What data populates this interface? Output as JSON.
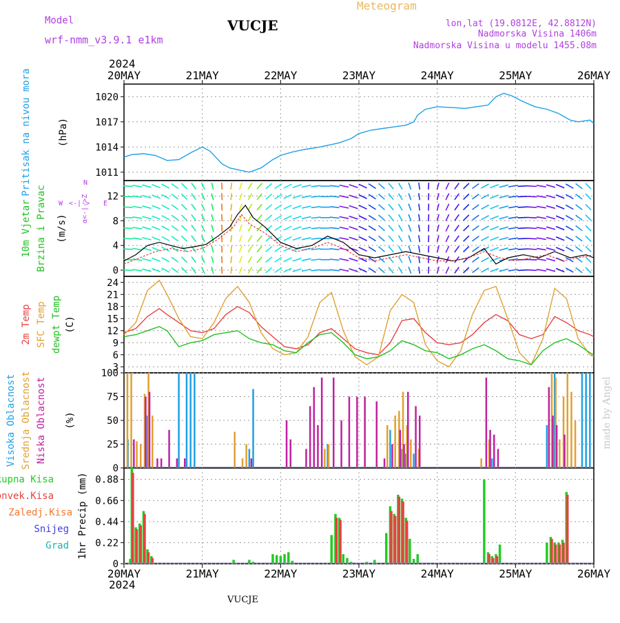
{
  "header": {
    "model_label": "Model",
    "model_value": "wrf-nmm_v3.9.1  e1km",
    "station": "VUCJE",
    "product": "Meteogram",
    "lonlat": "lon,lat (19.0812E, 42.8812N)",
    "altitude": "Nadmorska Visina 1406m",
    "model_altitude": "Nadmorska Visina u modelu 1455.08m"
  },
  "footer": {
    "station": "VUCJE",
    "credit": "made by Angel"
  },
  "colors": {
    "pressure": "#1ea0e6",
    "temp2m": "#e84040",
    "sfc": "#e0a030",
    "dewpt": "#22c022",
    "cloud_high": "#1ea0e6",
    "cloud_mid": "#e0a030",
    "cloud_low": "#c020a0",
    "precip_total": "#22cc22",
    "precip_conv": "#e84040",
    "precip_frozen": "#f07830",
    "snow": "#4040e0",
    "hail": "#20b0b0",
    "wind_title": "#22c022",
    "dir_legend": "#b040e0"
  },
  "chart_data": [
    {
      "type": "line",
      "title": "",
      "ylabel_lines": [
        "Pritisak na nivou mora",
        "(hPa)"
      ],
      "x_top_year": "2024",
      "x_ticks": [
        "20MAY",
        "21MAY",
        "22MAY",
        "23MAY",
        "24MAY",
        "25MAY",
        "26MAY"
      ],
      "x_days_from": "2024-05-20",
      "x_range": [
        0,
        6
      ],
      "y_ticks": [
        1011,
        1014,
        1017,
        1020
      ],
      "ylim": [
        1010,
        1021.5
      ],
      "series": [
        {
          "name": "Pritisak",
          "color": "#1ea0e6",
          "x": [
            0,
            0.1,
            0.25,
            0.4,
            0.55,
            0.7,
            0.85,
            1.0,
            1.1,
            1.25,
            1.35,
            1.5,
            1.6,
            1.75,
            1.9,
            2.0,
            2.15,
            2.3,
            2.5,
            2.6,
            2.75,
            2.9,
            3.0,
            3.15,
            3.3,
            3.45,
            3.6,
            3.7,
            3.75,
            3.85,
            4.0,
            4.2,
            4.35,
            4.5,
            4.65,
            4.75,
            4.85,
            4.95,
            5.1,
            5.25,
            5.4,
            5.55,
            5.7,
            5.8,
            5.95,
            6.0
          ],
          "values": [
            1012.8,
            1013.1,
            1013.2,
            1013.0,
            1012.4,
            1012.5,
            1013.3,
            1014.0,
            1013.5,
            1012.0,
            1011.5,
            1011.2,
            1011.0,
            1011.5,
            1012.5,
            1013.0,
            1013.4,
            1013.7,
            1014.0,
            1014.2,
            1014.5,
            1015.0,
            1015.6,
            1016.0,
            1016.2,
            1016.4,
            1016.6,
            1017.0,
            1017.8,
            1018.5,
            1018.8,
            1018.7,
            1018.6,
            1018.8,
            1019.0,
            1020.0,
            1020.4,
            1020.1,
            1019.4,
            1018.8,
            1018.5,
            1018.0,
            1017.2,
            1017.0,
            1017.2,
            1016.8
          ]
        }
      ]
    },
    {
      "type": "line",
      "title": "",
      "ylabel_lines": [
        "10m Vjetar",
        "Brzina i Pravac",
        "(m/s)"
      ],
      "direction_legend": {
        "top": "N",
        "left": "W",
        "right": "E",
        "arrow": "<-|->",
        "alpha": "α<-|->Z"
      },
      "y_ticks": [
        0,
        4,
        8,
        12
      ],
      "ylim": [
        -1,
        14.5
      ],
      "wind_arrows": "colored barbs on 9 levels 0..14 m/s, hue varying with time",
      "series": [
        {
          "name": "Brzina",
          "color": "#000000",
          "x": [
            0,
            0.15,
            0.3,
            0.45,
            0.6,
            0.75,
            0.9,
            1.05,
            1.2,
            1.35,
            1.45,
            1.55,
            1.65,
            1.8,
            2.0,
            2.2,
            2.4,
            2.6,
            2.8,
            3.0,
            3.2,
            3.4,
            3.6,
            3.8,
            4.0,
            4.2,
            4.4,
            4.6,
            4.75,
            4.9,
            5.1,
            5.3,
            5.5,
            5.7,
            5.9,
            6.0
          ],
          "values": [
            1.5,
            2.5,
            4.0,
            4.5,
            4.0,
            3.5,
            3.8,
            4.2,
            5.5,
            7.0,
            9.0,
            10.5,
            8.5,
            7.0,
            4.5,
            3.5,
            4.0,
            5.5,
            4.5,
            2.5,
            2.0,
            2.5,
            3.0,
            2.5,
            2.0,
            1.5,
            2.0,
            3.5,
            1.0,
            2.0,
            2.5,
            2.0,
            3.0,
            2.0,
            2.5,
            2.0
          ]
        },
        {
          "name": "Udari",
          "color": "#e84040",
          "x": [
            0,
            0.2,
            0.4,
            0.6,
            0.8,
            1.0,
            1.2,
            1.4,
            1.5,
            1.6,
            1.8,
            2.0,
            2.2,
            2.4,
            2.6,
            2.8,
            3.0,
            3.2,
            3.4,
            3.6,
            3.8,
            4.0,
            4.2,
            4.4,
            4.6,
            4.8,
            5.0,
            5.2,
            5.4,
            5.6,
            5.8,
            6.0
          ],
          "values": [
            1.0,
            2.0,
            3.0,
            3.5,
            3.0,
            3.5,
            5.0,
            7.0,
            9.0,
            7.5,
            6.0,
            4.0,
            3.0,
            3.5,
            4.5,
            3.5,
            2.0,
            1.5,
            2.0,
            2.5,
            2.0,
            1.5,
            1.5,
            2.0,
            3.0,
            2.0,
            1.5,
            2.0,
            2.5,
            1.5,
            2.0,
            2.5
          ]
        }
      ]
    },
    {
      "type": "line",
      "title": "",
      "ylabel_lines": [
        "2m Temp",
        "SFC Temp",
        "dewpt Temp",
        "(C)"
      ],
      "y_ticks": [
        3,
        6,
        9,
        12,
        15,
        18,
        21,
        24
      ],
      "ylim": [
        1.5,
        25.5
      ],
      "series": [
        {
          "name": "2m Temp",
          "color": "#e84040",
          "x": [
            0,
            0.15,
            0.3,
            0.45,
            0.55,
            0.7,
            0.85,
            1.0,
            1.15,
            1.3,
            1.45,
            1.6,
            1.75,
            1.9,
            2.05,
            2.2,
            2.35,
            2.5,
            2.65,
            2.8,
            2.95,
            3.1,
            3.25,
            3.4,
            3.55,
            3.7,
            3.85,
            4.0,
            4.15,
            4.3,
            4.45,
            4.6,
            4.75,
            4.9,
            5.05,
            5.2,
            5.35,
            5.5,
            5.65,
            5.8,
            5.95,
            6.0
          ],
          "values": [
            11.5,
            12.5,
            15.5,
            17.5,
            16.0,
            14.0,
            12.0,
            11.5,
            12.5,
            16.0,
            18.0,
            16.5,
            13.0,
            10.5,
            8.0,
            7.5,
            8.5,
            11.5,
            12.5,
            10.0,
            7.5,
            6.5,
            6.0,
            9.0,
            14.5,
            15.0,
            11.5,
            9.0,
            8.5,
            9.0,
            11.0,
            14.0,
            16.0,
            14.5,
            11.0,
            10.0,
            11.0,
            15.5,
            14.0,
            12.0,
            11.0,
            10.5
          ]
        },
        {
          "name": "SFC Temp",
          "color": "#e0a030",
          "x": [
            0,
            0.15,
            0.3,
            0.45,
            0.55,
            0.7,
            0.85,
            1.0,
            1.15,
            1.3,
            1.45,
            1.6,
            1.75,
            1.9,
            2.05,
            2.2,
            2.35,
            2.5,
            2.65,
            2.8,
            2.95,
            3.1,
            3.25,
            3.4,
            3.55,
            3.7,
            3.85,
            4.0,
            4.15,
            4.3,
            4.45,
            4.6,
            4.75,
            4.9,
            5.05,
            5.2,
            5.35,
            5.5,
            5.65,
            5.8,
            5.95,
            6.0
          ],
          "values": [
            11.0,
            14.0,
            22.0,
            24.5,
            21.0,
            15.0,
            10.5,
            10.0,
            14.0,
            20.0,
            23.0,
            19.0,
            11.5,
            7.5,
            6.0,
            6.5,
            10.5,
            19.0,
            21.5,
            12.0,
            5.5,
            3.5,
            5.5,
            17.0,
            21.0,
            19.0,
            8.5,
            4.5,
            3.0,
            7.0,
            16.0,
            22.0,
            23.0,
            15.0,
            6.5,
            3.5,
            10.0,
            22.5,
            20.0,
            10.0,
            6.0,
            5.5
          ]
        },
        {
          "name": "dewpt Temp",
          "color": "#22c022",
          "x": [
            0,
            0.15,
            0.3,
            0.45,
            0.55,
            0.7,
            0.85,
            1.0,
            1.15,
            1.3,
            1.45,
            1.6,
            1.75,
            1.9,
            2.05,
            2.2,
            2.35,
            2.5,
            2.65,
            2.8,
            2.95,
            3.1,
            3.25,
            3.4,
            3.55,
            3.7,
            3.85,
            4.0,
            4.15,
            4.3,
            4.45,
            4.6,
            4.75,
            4.9,
            5.05,
            5.2,
            5.35,
            5.5,
            5.65,
            5.8,
            5.95,
            6.0
          ],
          "values": [
            10.5,
            11.0,
            12.0,
            13.0,
            12.0,
            8.0,
            9.0,
            9.5,
            11.0,
            11.5,
            12.0,
            10.0,
            9.0,
            8.5,
            7.0,
            6.5,
            9.0,
            11.0,
            11.5,
            9.0,
            6.0,
            5.0,
            5.5,
            7.0,
            9.5,
            8.5,
            7.0,
            6.5,
            5.0,
            6.0,
            7.5,
            8.5,
            7.0,
            5.0,
            4.5,
            3.5,
            7.0,
            9.0,
            10.0,
            8.5,
            6.5,
            6.0
          ]
        }
      ]
    },
    {
      "type": "bar",
      "title": "",
      "ylabel_lines": [
        "Visoka Oblacnost",
        "Srednja Oblacnost",
        "Niska Oblacnost",
        "(%)"
      ],
      "y_ticks": [
        0,
        25,
        50,
        75,
        100
      ],
      "ylim": [
        0,
        100
      ],
      "series": [
        {
          "name": "Visoka Oblacnost",
          "color": "#1ea0e6",
          "x": [
            0.05,
            0.3,
            0.7,
            0.8,
            0.85,
            0.9,
            1.6,
            1.65,
            2.6,
            3.4,
            3.55,
            3.6,
            3.7,
            4.7,
            5.4,
            5.5,
            5.85,
            5.9,
            5.95
          ],
          "values": [
            30,
            55,
            100,
            100,
            100,
            100,
            20,
            83,
            25,
            40,
            20,
            15,
            15,
            10,
            45,
            100,
            100,
            100,
            100
          ]
        },
        {
          "name": "Srednja Oblacnost",
          "color": "#e0a030",
          "x": [
            0.03,
            0.08,
            0.15,
            0.2,
            0.25,
            0.3,
            0.35,
            1.4,
            1.5,
            1.55,
            2.55,
            2.6,
            3.35,
            3.45,
            3.5,
            3.55,
            3.6,
            3.65,
            3.75,
            4.55,
            4.65,
            5.45,
            5.5,
            5.55,
            5.6,
            5.65,
            5.7,
            5.75
          ],
          "values": [
            100,
            100,
            28,
            25,
            78,
            100,
            55,
            38,
            10,
            25,
            20,
            25,
            45,
            55,
            60,
            80,
            45,
            30,
            20,
            10,
            30,
            100,
            95,
            30,
            75,
            100,
            80,
            50
          ]
        },
        {
          "name": "Niska Oblacnost",
          "color": "#c020a0",
          "x": [
            0.1,
            0.25,
            0.3,
            0.4,
            0.45,
            0.55,
            0.65,
            0.75,
            1.6,
            2.05,
            2.1,
            2.3,
            2.35,
            2.4,
            2.45,
            2.5,
            2.65,
            2.75,
            2.85,
            2.95,
            3.05,
            3.2,
            3.3,
            3.4,
            3.5,
            3.55,
            3.6,
            3.7,
            3.75,
            4.6,
            4.65,
            4.7,
            4.75,
            5.4,
            5.45,
            5.5,
            5.6
          ],
          "values": [
            30,
            75,
            80,
            10,
            10,
            40,
            10,
            10,
            10,
            50,
            30,
            20,
            65,
            85,
            45,
            95,
            95,
            50,
            75,
            75,
            75,
            70,
            10,
            25,
            40,
            25,
            80,
            65,
            55,
            95,
            40,
            35,
            20,
            85,
            55,
            45,
            35
          ]
        }
      ]
    },
    {
      "type": "bar",
      "title": "",
      "ylabel_lines": [
        "1hr Precip (mm)"
      ],
      "legend_labels": [
        "Ukupna Kisa",
        "Konvek.Kisa",
        "Zaledj.Kisa",
        "Snijeg",
        "Grad"
      ],
      "x_bottom_year": "2024",
      "y_ticks": [
        0,
        0.22,
        0.44,
        0.66,
        0.88
      ],
      "ylim": [
        0,
        1.0
      ],
      "series": [
        {
          "name": "Ukupna Kisa",
          "color": "#22cc22",
          "x": [
            0.08,
            0.1,
            0.15,
            0.2,
            0.25,
            0.3,
            0.35,
            1.4,
            1.6,
            1.65,
            1.9,
            1.95,
            2.0,
            2.05,
            2.1,
            2.15,
            2.65,
            2.7,
            2.75,
            2.8,
            2.85,
            2.9,
            3.1,
            3.2,
            3.35,
            3.4,
            3.45,
            3.5,
            3.55,
            3.6,
            3.65,
            3.7,
            3.75,
            4.6,
            4.65,
            4.7,
            4.75,
            4.8,
            5.4,
            5.45,
            5.5,
            5.55,
            5.6,
            5.65
          ],
          "values": [
            0.05,
            1.0,
            0.38,
            0.42,
            0.55,
            0.15,
            0.08,
            0.04,
            0.04,
            0.02,
            0.1,
            0.09,
            0.08,
            0.1,
            0.12,
            0.03,
            0.3,
            0.52,
            0.48,
            0.1,
            0.06,
            0.02,
            0.02,
            0.04,
            0.32,
            0.6,
            0.52,
            0.72,
            0.68,
            0.48,
            0.26,
            0.05,
            0.1,
            0.88,
            0.12,
            0.08,
            0.1,
            0.2,
            0.22,
            0.28,
            0.22,
            0.22,
            0.25,
            0.75
          ]
        },
        {
          "name": "Konvek.Kisa",
          "color": "#e84040",
          "x": [
            0.1,
            0.15,
            0.2,
            0.25,
            0.3,
            0.35,
            2.7,
            2.75,
            3.4,
            3.45,
            3.5,
            3.55,
            3.6,
            4.65,
            4.7,
            4.75,
            5.45,
            5.5,
            5.55,
            5.6,
            5.65
          ],
          "values": [
            0.95,
            0.36,
            0.4,
            0.52,
            0.12,
            0.06,
            0.48,
            0.46,
            0.55,
            0.5,
            0.7,
            0.65,
            0.45,
            0.1,
            0.06,
            0.08,
            0.26,
            0.2,
            0.2,
            0.22,
            0.72
          ]
        }
      ]
    }
  ]
}
